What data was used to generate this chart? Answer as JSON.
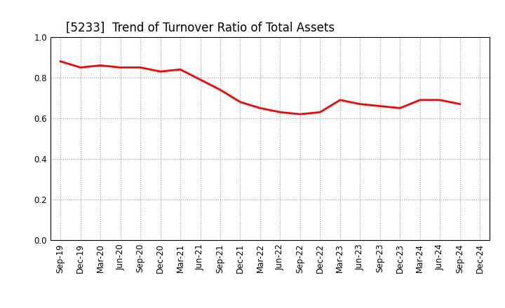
{
  "title": "[5233]  Trend of Turnover Ratio of Total Assets",
  "x_labels": [
    "Sep-19",
    "Dec-19",
    "Mar-20",
    "Jun-20",
    "Sep-20",
    "Dec-20",
    "Mar-21",
    "Jun-21",
    "Sep-21",
    "Dec-21",
    "Mar-22",
    "Jun-22",
    "Sep-22",
    "Dec-22",
    "Mar-23",
    "Jun-23",
    "Sep-23",
    "Dec-23",
    "Mar-24",
    "Jun-24",
    "Sep-24",
    "Dec-24"
  ],
  "values": [
    0.88,
    0.85,
    0.86,
    0.85,
    0.85,
    0.83,
    0.84,
    0.79,
    0.74,
    0.68,
    0.65,
    0.63,
    0.62,
    0.63,
    0.69,
    0.67,
    0.66,
    0.65,
    0.69,
    0.69,
    0.67,
    null
  ],
  "line_color": "#ff0000",
  "line_width": 2.0,
  "ylim": [
    0.0,
    1.0
  ],
  "yticks": [
    0.0,
    0.2,
    0.4,
    0.6,
    0.8,
    1.0
  ],
  "grid_color": "#999999",
  "grid_style": "dotted",
  "bg_color": "#ffffff",
  "title_fontsize": 12,
  "tick_fontsize": 8.5
}
